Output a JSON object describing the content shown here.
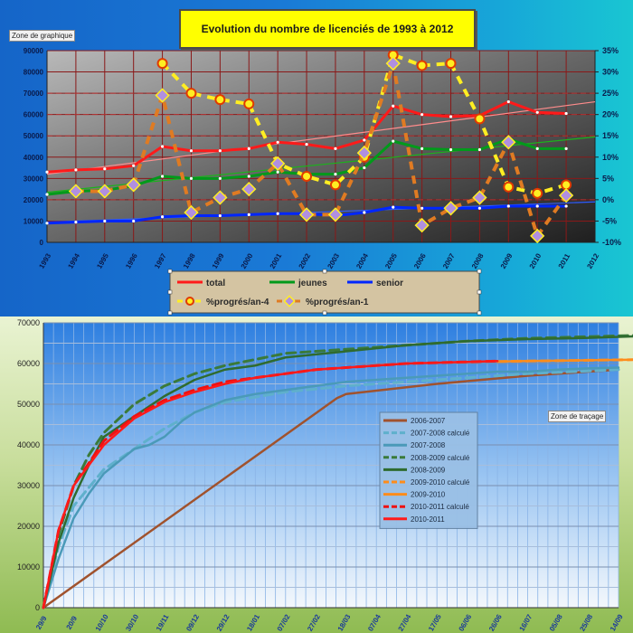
{
  "chart_data": [
    {
      "type": "line",
      "title": "Evolution du nombre de licenciés de 1993 à 2012",
      "zone_label": "Zone de graphique",
      "categories": [
        "1993",
        "1994",
        "1995",
        "1996",
        "1997",
        "1998",
        "1999",
        "2000",
        "2001",
        "2002",
        "2003",
        "2004",
        "2005",
        "2006",
        "2007",
        "2008",
        "2009",
        "2010",
        "2011",
        "2012"
      ],
      "ylim_left": [
        0,
        90000
      ],
      "y_ticks_left": [
        "0",
        "10000",
        "20000",
        "30000",
        "40000",
        "50000",
        "60000",
        "70000",
        "80000",
        "90000"
      ],
      "ylim_right": [
        -0.1,
        0.35
      ],
      "y_ticks_right": [
        "-10%",
        "-5%",
        "0%",
        "5%",
        "10%",
        "15%",
        "20%",
        "25%",
        "30%",
        "35%"
      ],
      "grid": true,
      "legend_position": "bottom",
      "series": [
        {
          "name": "total",
          "axis": "left",
          "color": "#ff1a1a",
          "values": [
            33000,
            34000,
            34500,
            36000,
            45000,
            43000,
            43000,
            44000,
            47000,
            46000,
            44000,
            48000,
            64000,
            60000,
            59000,
            59500,
            66000,
            61000,
            60500,
            null
          ]
        },
        {
          "name": "jeunes",
          "axis": "left",
          "color": "#009a1a",
          "values": [
            22500,
            24000,
            24500,
            26500,
            31000,
            30000,
            30000,
            31000,
            33000,
            32000,
            32000,
            35000,
            47500,
            44000,
            43500,
            43500,
            48500,
            44000,
            44000,
            null
          ]
        },
        {
          "name": "senior",
          "axis": "left",
          "color": "#0026ff",
          "values": [
            9000,
            9500,
            10000,
            10000,
            12000,
            12500,
            12500,
            13000,
            13500,
            13500,
            12500,
            14000,
            16500,
            16000,
            16000,
            16000,
            17000,
            17000,
            17000,
            null
          ]
        },
        {
          "name": "%progrés/an-4",
          "axis": "right",
          "color": "#ffee22",
          "values": [
            null,
            null,
            null,
            null,
            0.32,
            0.25,
            0.235,
            0.225,
            0.085,
            0.055,
            0.035,
            0.1,
            0.34,
            0.315,
            0.32,
            0.19,
            0.03,
            0.015,
            0.035,
            null
          ]
        },
        {
          "name": "%progrés/an-1",
          "axis": "right",
          "color": "#e07b22",
          "values": [
            null,
            0.02,
            0.02,
            0.035,
            0.245,
            -0.03,
            0.005,
            0.025,
            0.085,
            -0.035,
            -0.035,
            0.11,
            0.32,
            -0.06,
            -0.02,
            0.005,
            0.135,
            -0.085,
            0.01,
            null
          ]
        }
      ],
      "trendlines": [
        {
          "of": "total",
          "color": "#ff8c8c",
          "from": 32000,
          "to": 66000
        },
        {
          "of": "jeunes",
          "color": "#1bb31b",
          "from": 23500,
          "to": 49500
        },
        {
          "of": "senior",
          "color": "#2d5bff",
          "from": 9500,
          "to": 19000
        }
      ]
    },
    {
      "type": "line",
      "title": "",
      "zone_label": "Zone de traçage",
      "x_ticks": [
        "29/9",
        "20/9",
        "10/10",
        "30/10",
        "19/11",
        "09/12",
        "29/12",
        "18/01",
        "07/02",
        "27/02",
        "18/03",
        "07/04",
        "27/04",
        "17/05",
        "06/06",
        "26/06",
        "16/07",
        "05/08",
        "25/08",
        "14/09"
      ],
      "ylim": [
        0,
        70000
      ],
      "y_ticks": [
        "0",
        "10000",
        "20000",
        "30000",
        "40000",
        "50000",
        "60000",
        "70000"
      ],
      "grid": true,
      "legend_position": "center-right",
      "series": [
        {
          "name": "2006-2007",
          "color": "#a0522d",
          "dash": false,
          "x": [
            0,
            9.7,
            10,
            13,
            16,
            19
          ],
          "values": [
            0,
            51500,
            52500,
            55000,
            57000,
            58500
          ]
        },
        {
          "name": "2007-2008 calculé",
          "color": "#5fb0cc",
          "dash": true,
          "x": [
            0,
            0.5,
            1,
            2,
            3,
            4,
            5,
            6,
            8,
            10,
            13,
            16,
            19
          ],
          "values": [
            0,
            15000,
            25000,
            34000,
            39000,
            44000,
            48000,
            50500,
            53000,
            54500,
            56000,
            57500,
            58500
          ]
        },
        {
          "name": "2007-2008",
          "color": "#4a9ab8",
          "dash": false,
          "x": [
            0,
            0.5,
            1,
            1.5,
            2,
            2.5,
            3,
            3.5,
            4,
            4.3,
            4.6,
            5,
            5.5,
            6,
            7,
            8,
            9,
            10,
            11,
            12,
            13,
            14,
            15,
            16,
            17,
            18,
            19
          ],
          "values": [
            0,
            12000,
            22000,
            28000,
            33000,
            36000,
            39000,
            40000,
            42000,
            44000,
            46000,
            48000,
            49500,
            51000,
            52500,
            53500,
            54500,
            55500,
            56000,
            56500,
            57000,
            57500,
            58000,
            58000,
            58500,
            58800,
            59000
          ]
        },
        {
          "name": "2008-2009 calculé",
          "color": "#3a7a3a",
          "dash": true,
          "x": [
            0,
            0.5,
            1,
            1.5,
            2,
            3,
            4,
            5,
            6,
            7,
            8,
            10,
            12,
            14,
            16,
            18,
            20
          ],
          "values": [
            0,
            18000,
            30000,
            37500,
            43000,
            50000,
            54500,
            57500,
            59500,
            61000,
            62500,
            63500,
            64500,
            65500,
            66200,
            66600,
            67000
          ]
        },
        {
          "name": "2008-2009",
          "color": "#2f6b2f",
          "dash": false,
          "x": [
            0,
            0.5,
            1,
            1.5,
            2,
            3,
            4,
            5,
            6,
            7,
            8,
            10,
            12,
            14,
            16,
            18,
            20
          ],
          "values": [
            0,
            16000,
            27000,
            35000,
            42000,
            47000,
            52000,
            56000,
            58500,
            59500,
            61500,
            63000,
            64500,
            65500,
            66000,
            66300,
            66800
          ]
        },
        {
          "name": "2009-2010 calculé",
          "color": "#ff8c1a",
          "dash": true,
          "x": [
            15,
            16,
            17,
            18,
            19,
            20
          ],
          "values": [
            60500,
            60600,
            60700,
            60800,
            60900,
            61000
          ]
        },
        {
          "name": "2009-2010",
          "color": "#ff8c1a",
          "dash": false,
          "x": [
            15,
            16,
            17,
            18,
            19,
            20
          ],
          "values": [
            60500,
            60600,
            60700,
            60800,
            60900,
            61000
          ]
        },
        {
          "name": "2010-2011 calculé",
          "color": "#ee1111",
          "dash": true,
          "x": [
            0,
            0.5,
            1,
            2,
            3,
            4,
            5,
            6,
            7,
            8,
            9,
            10,
            11,
            12,
            13,
            14,
            15
          ],
          "values": [
            0,
            19000,
            30000,
            41000,
            47000,
            51000,
            53500,
            55500,
            56500,
            57500,
            58500,
            59000,
            59500,
            60000,
            60200,
            60400,
            60600
          ]
        },
        {
          "name": "2010-2011",
          "color": "#ff1a1a",
          "dash": false,
          "x": [
            0,
            0.5,
            1,
            2,
            3,
            4,
            5,
            6,
            7,
            8,
            9,
            10,
            11,
            12,
            13,
            14,
            15
          ],
          "values": [
            0,
            19000,
            30000,
            40000,
            46500,
            50500,
            53000,
            55000,
            56500,
            57500,
            58500,
            59000,
            59500,
            60000,
            60200,
            60400,
            60600
          ]
        }
      ]
    }
  ]
}
